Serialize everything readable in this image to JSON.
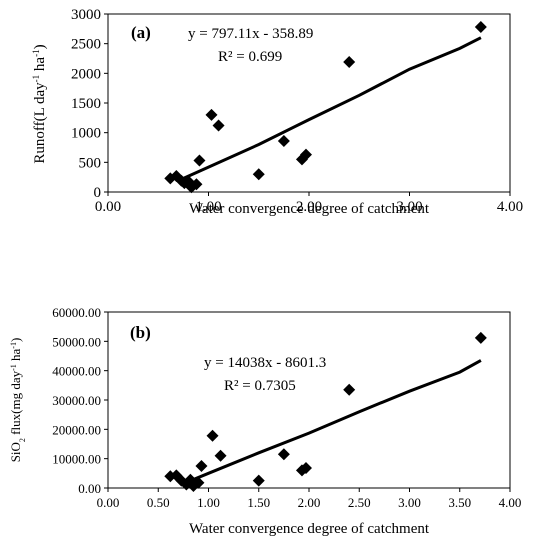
{
  "chart_data": [
    {
      "type": "scatter",
      "panel_label": "(a)",
      "xlabel": "Water convergence degree of catchment",
      "ylabel": "Runoff(L day-1 ha-1)",
      "xlim": [
        0,
        4
      ],
      "ylim": [
        0,
        3000
      ],
      "xticks": [
        "0.00",
        "1.00",
        "2.00",
        "3.00",
        "4.00"
      ],
      "xtick_values": [
        0,
        1,
        2,
        3,
        4
      ],
      "yticks": [
        "0",
        "500",
        "1000",
        "1500",
        "2000",
        "2500",
        "3000"
      ],
      "ytick_values": [
        0,
        500,
        1000,
        1500,
        2000,
        2500,
        3000
      ],
      "grid": false,
      "equation": "y = 797.11x - 358.89",
      "r2": "R² = 0.699",
      "points": [
        {
          "x": 0.62,
          "y": 230
        },
        {
          "x": 0.68,
          "y": 270
        },
        {
          "x": 0.73,
          "y": 190
        },
        {
          "x": 0.76,
          "y": 150
        },
        {
          "x": 0.8,
          "y": 180
        },
        {
          "x": 0.83,
          "y": 80
        },
        {
          "x": 0.88,
          "y": 130
        },
        {
          "x": 0.91,
          "y": 530
        },
        {
          "x": 1.03,
          "y": 1300
        },
        {
          "x": 1.1,
          "y": 1120
        },
        {
          "x": 1.5,
          "y": 300
        },
        {
          "x": 1.75,
          "y": 860
        },
        {
          "x": 1.93,
          "y": 550
        },
        {
          "x": 1.97,
          "y": 630
        },
        {
          "x": 2.4,
          "y": 2190
        },
        {
          "x": 3.71,
          "y": 2780
        }
      ],
      "trend": [
        {
          "x": 0.75,
          "y": 230
        },
        {
          "x": 1.0,
          "y": 420
        },
        {
          "x": 1.5,
          "y": 800
        },
        {
          "x": 2.0,
          "y": 1220
        },
        {
          "x": 2.5,
          "y": 1630
        },
        {
          "x": 3.0,
          "y": 2070
        },
        {
          "x": 3.5,
          "y": 2420
        },
        {
          "x": 3.71,
          "y": 2600
        }
      ]
    },
    {
      "type": "scatter",
      "panel_label": "(b)",
      "xlabel": "Water convergence degree of catchment",
      "ylabel": "SiO2 flux(mg day-1 ha-1)",
      "xlim": [
        0,
        4
      ],
      "ylim": [
        0,
        60000
      ],
      "xticks": [
        "0.00",
        "0.50",
        "1.00",
        "1.50",
        "2.00",
        "2.50",
        "3.00",
        "3.50",
        "4.00"
      ],
      "xtick_values": [
        0,
        0.5,
        1,
        1.5,
        2,
        2.5,
        3,
        3.5,
        4
      ],
      "yticks": [
        "0.00",
        "10000.00",
        "20000.00",
        "30000.00",
        "40000.00",
        "50000.00",
        "60000.00"
      ],
      "ytick_values": [
        0,
        10000,
        20000,
        30000,
        40000,
        50000,
        60000
      ],
      "grid": false,
      "equation": "y = 14038x - 8601.3",
      "r2": "R² = 0.7305",
      "points": [
        {
          "x": 0.62,
          "y": 4000
        },
        {
          "x": 0.68,
          "y": 4300
        },
        {
          "x": 0.73,
          "y": 2500
        },
        {
          "x": 0.78,
          "y": 1200
        },
        {
          "x": 0.82,
          "y": 2800
        },
        {
          "x": 0.85,
          "y": 700
        },
        {
          "x": 0.9,
          "y": 1800
        },
        {
          "x": 0.93,
          "y": 7500
        },
        {
          "x": 1.04,
          "y": 17800
        },
        {
          "x": 1.12,
          "y": 11000
        },
        {
          "x": 1.5,
          "y": 2500
        },
        {
          "x": 1.75,
          "y": 11500
        },
        {
          "x": 1.93,
          "y": 6000
        },
        {
          "x": 1.97,
          "y": 6800
        },
        {
          "x": 2.4,
          "y": 33500
        },
        {
          "x": 3.71,
          "y": 51200
        }
      ],
      "trend": [
        {
          "x": 0.75,
          "y": 1500
        },
        {
          "x": 1.0,
          "y": 5000
        },
        {
          "x": 1.5,
          "y": 12000
        },
        {
          "x": 2.0,
          "y": 18700
        },
        {
          "x": 2.5,
          "y": 26000
        },
        {
          "x": 3.0,
          "y": 33000
        },
        {
          "x": 3.5,
          "y": 39500
        },
        {
          "x": 3.71,
          "y": 43500
        }
      ]
    }
  ]
}
